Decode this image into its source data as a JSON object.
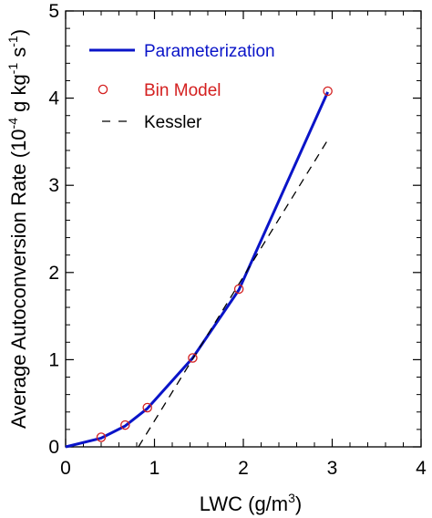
{
  "chart_data": {
    "type": "line",
    "xlabel": {
      "main": "LWC  (g/m",
      "sup": "3",
      "end": ")"
    },
    "ylabel": {
      "main": "Average Autoconversion Rate  (10",
      "sup1": "-4",
      "mid1": " g kg",
      "sup2": "-1",
      "mid2": " s",
      "sup3": "-1",
      "end": ")"
    },
    "xlim": [
      0,
      4
    ],
    "ylim": [
      0,
      5
    ],
    "xticks": [
      "0",
      "1",
      "2",
      "3",
      "4"
    ],
    "yticks": [
      "0",
      "1",
      "2",
      "3",
      "4",
      "5"
    ],
    "legend_placement": "top-left",
    "series": [
      {
        "name": "Parameterization",
        "style": "solid",
        "color": "#0a14c8",
        "x": [
          0.0,
          0.4,
          0.67,
          0.92,
          1.43,
          1.95,
          2.95
        ],
        "y": [
          0.0,
          0.1,
          0.24,
          0.44,
          1.02,
          1.8,
          4.07
        ]
      },
      {
        "name": "Bin Model",
        "style": "marker",
        "color": "#d42020",
        "x": [
          0.4,
          0.67,
          0.92,
          1.43,
          1.95,
          2.95
        ],
        "y": [
          0.11,
          0.25,
          0.45,
          1.02,
          1.81,
          4.08
        ]
      },
      {
        "name": "Kessler",
        "style": "dashed",
        "color": "#000000",
        "x": [
          0.82,
          2.95
        ],
        "y": [
          0.0,
          3.52
        ]
      }
    ]
  }
}
